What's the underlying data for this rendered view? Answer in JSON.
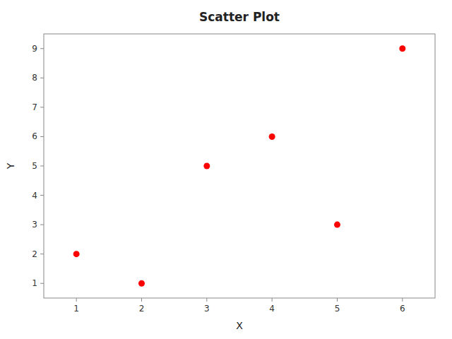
{
  "chart_data": {
    "type": "scatter",
    "title": "Scatter Plot",
    "xlabel": "X",
    "ylabel": "Y",
    "x": [
      1,
      2,
      3,
      4,
      5,
      6
    ],
    "values": [
      2,
      1,
      5,
      6,
      3,
      9
    ],
    "color": "red",
    "xlim": [
      0.5,
      6.5
    ],
    "ylim": [
      0.5,
      9.5
    ],
    "xticks": [
      1,
      2,
      3,
      4,
      5,
      6
    ],
    "yticks": [
      1,
      2,
      3,
      4,
      5,
      6,
      7,
      8,
      9
    ],
    "grid": false
  }
}
